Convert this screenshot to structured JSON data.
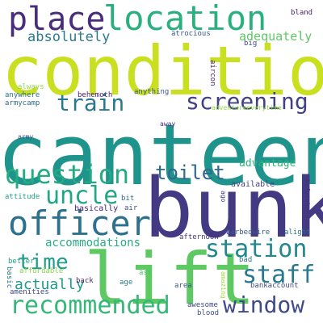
{
  "words": [
    "canteen",
    "condition",
    "bunk",
    "lift",
    "location",
    "place",
    "officer",
    "screening",
    "question",
    "uncle",
    "recommended",
    "window",
    "station",
    "staff",
    "train",
    "toilet",
    "time",
    "absolutely",
    "adequately",
    "actually",
    "accommodations",
    "advantage",
    "basically",
    "available",
    "anything",
    "atrocious",
    "adventureeverytime",
    "behemoth",
    "always",
    "anywhere",
    "armycamp",
    "army",
    "away",
    "big",
    "bland",
    "aircon",
    "ago",
    "beforehand",
    "attitude",
    "bit",
    "air",
    "better",
    "afternoon",
    "barbedwire",
    "alight",
    "basic",
    "affordable",
    "bad",
    "ask",
    "back",
    "age",
    "amenities",
    "area",
    "amazing",
    "awesome",
    "blood",
    "bankaccount"
  ],
  "colors": {
    "background": "#ffffff",
    "palette": [
      "#440154",
      "#482878",
      "#3e4a89",
      "#31688e",
      "#26828e",
      "#1f9e89",
      "#35b779",
      "#6ece58",
      "#b5de2b",
      "#c8e020"
    ]
  }
}
